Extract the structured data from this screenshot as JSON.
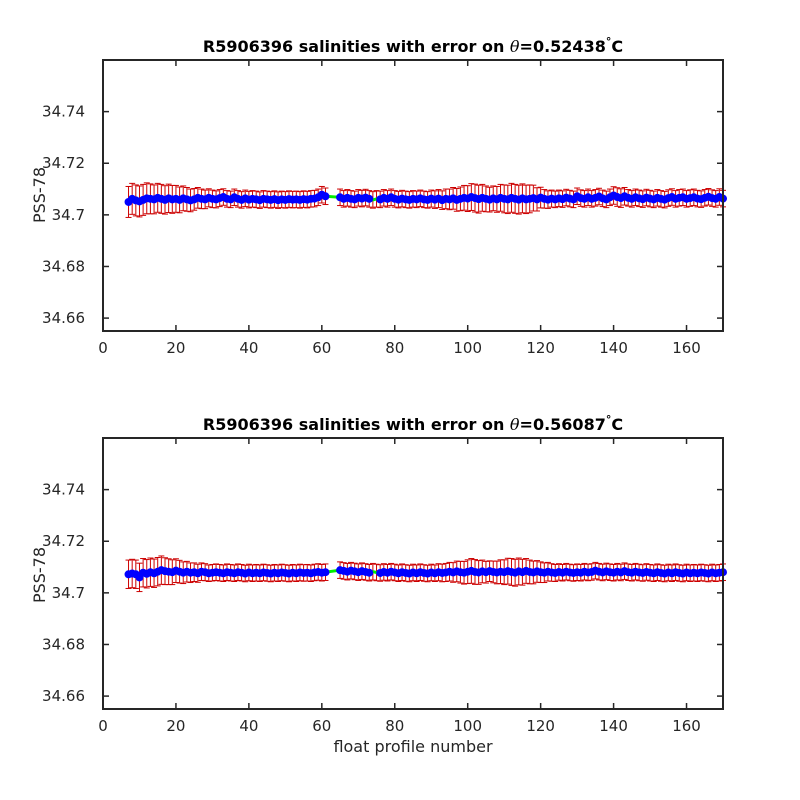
{
  "chart_data": [
    {
      "type": "scatter",
      "title_prefix": "R5906396 salinities with error on ",
      "title_theta": "θ",
      "title_value": "=0.52438",
      "title_unit": "C",
      "xlabel": "",
      "ylabel": "PSS-78",
      "xlim": [
        0,
        170
      ],
      "ylim": [
        34.655,
        34.76
      ],
      "xticks": [
        0,
        20,
        40,
        60,
        80,
        100,
        120,
        140,
        160
      ],
      "yticks": [
        34.66,
        34.68,
        34.7,
        34.72,
        34.74
      ],
      "ytick_labels": [
        "34.66",
        "34.68",
        "34.7",
        "34.72",
        "34.74"
      ],
      "grid": false,
      "series": {
        "x": [
          7,
          8,
          9,
          10,
          11,
          12,
          13,
          14,
          15,
          16,
          17,
          18,
          19,
          20,
          21,
          22,
          23,
          24,
          25,
          26,
          27,
          28,
          29,
          30,
          31,
          32,
          33,
          34,
          35,
          36,
          37,
          38,
          39,
          40,
          41,
          42,
          43,
          44,
          45,
          46,
          47,
          48,
          49,
          50,
          51,
          52,
          53,
          54,
          55,
          56,
          57,
          58,
          59,
          60,
          61,
          65,
          66,
          67,
          68,
          69,
          70,
          71,
          72,
          73,
          74,
          75,
          76,
          77,
          78,
          79,
          80,
          81,
          82,
          83,
          84,
          85,
          86,
          87,
          88,
          89,
          90,
          91,
          92,
          93,
          94,
          95,
          96,
          97,
          98,
          99,
          100,
          101,
          102,
          103,
          104,
          105,
          106,
          107,
          108,
          109,
          110,
          111,
          112,
          113,
          114,
          115,
          116,
          117,
          118,
          119,
          120,
          121,
          122,
          123,
          124,
          125,
          126,
          127,
          128,
          129,
          130,
          131,
          132,
          133,
          134,
          135,
          136,
          137,
          138,
          139,
          140,
          141,
          142,
          143,
          144,
          145,
          146,
          147,
          148,
          149,
          150,
          151,
          152,
          153,
          154,
          155,
          156,
          157,
          158,
          159,
          160,
          161,
          162,
          163,
          164,
          165,
          166,
          167,
          168,
          169,
          170
        ],
        "y": [
          34.705,
          34.7062,
          34.7056,
          34.7052,
          34.7058,
          34.7064,
          34.7062,
          34.706,
          34.7066,
          34.7062,
          34.7058,
          34.7064,
          34.706,
          34.7062,
          34.7058,
          34.7064,
          34.706,
          34.7056,
          34.706,
          34.7066,
          34.7062,
          34.706,
          34.7066,
          34.7062,
          34.706,
          34.7065,
          34.7069,
          34.7062,
          34.706,
          34.7068,
          34.7062,
          34.7058,
          34.7064,
          34.7059,
          34.7062,
          34.706,
          34.7057,
          34.7062,
          34.706,
          34.7058,
          34.7061,
          34.7057,
          34.706,
          34.7058,
          34.7061,
          34.7059,
          34.706,
          34.7058,
          34.7061,
          34.7059,
          34.7062,
          34.7063,
          34.7068,
          34.7078,
          34.7072,
          34.7068,
          34.7062,
          34.7066,
          34.7062,
          34.706,
          34.7066,
          34.7063,
          34.7067,
          34.7062,
          34.7058,
          34.7062,
          34.706,
          34.7066,
          34.7062,
          34.7068,
          34.7062,
          34.7059,
          34.7063,
          34.706,
          34.7058,
          34.7062,
          34.706,
          34.7064,
          34.706,
          34.7058,
          34.7063,
          34.7059,
          34.7063,
          34.7057,
          34.7062,
          34.706,
          34.7064,
          34.7058,
          34.7062,
          34.7066,
          34.7063,
          34.7069,
          34.7065,
          34.7061,
          34.7066,
          34.7062,
          34.7059,
          34.7064,
          34.706,
          34.7066,
          34.7062,
          34.706,
          34.7066,
          34.7062,
          34.7059,
          34.7064,
          34.706,
          34.7062,
          34.7065,
          34.706,
          34.7067,
          34.7062,
          34.7059,
          34.7063,
          34.706,
          34.7064,
          34.7061,
          34.7067,
          34.7063,
          34.706,
          34.7072,
          34.7065,
          34.7062,
          34.7068,
          34.7062,
          34.7066,
          34.7071,
          34.7064,
          34.706,
          34.7068,
          34.7075,
          34.7069,
          34.7065,
          34.7072,
          34.7066,
          34.7062,
          34.7068,
          34.7064,
          34.7061,
          34.7067,
          34.7063,
          34.706,
          34.7066,
          34.7062,
          34.7059,
          34.7065,
          34.7069,
          34.7062,
          34.7066,
          34.7068,
          34.7062,
          34.7065,
          34.7068,
          34.7063,
          34.7061,
          34.7066,
          34.707,
          34.7065,
          34.7062,
          34.7069,
          34.7063
        ],
        "err": [
          0.006,
          0.006,
          0.006,
          0.006,
          0.006,
          0.006,
          0.0058,
          0.0056,
          0.0056,
          0.0056,
          0.0055,
          0.0055,
          0.0054,
          0.0052,
          0.005,
          0.0048,
          0.0046,
          0.0044,
          0.0042,
          0.004,
          0.0038,
          0.0036,
          0.0035,
          0.0034,
          0.0033,
          0.0033,
          0.0032,
          0.0032,
          0.0032,
          0.0032,
          0.0032,
          0.0032,
          0.0032,
          0.0032,
          0.0032,
          0.0032,
          0.0032,
          0.0032,
          0.0032,
          0.0032,
          0.0032,
          0.0032,
          0.0032,
          0.0032,
          0.0032,
          0.0032,
          0.0032,
          0.0032,
          0.0032,
          0.0032,
          0.0032,
          0.0032,
          0.0032,
          0.0032,
          0.0032,
          0.0032,
          0.0032,
          0.0032,
          0.0032,
          0.0032,
          0.0032,
          0.0032,
          0.0032,
          0.0032,
          0.0032,
          0.0032,
          0.0032,
          0.0032,
          0.0032,
          0.0032,
          0.0032,
          0.0032,
          0.0032,
          0.0032,
          0.0032,
          0.0032,
          0.0032,
          0.0032,
          0.0032,
          0.0032,
          0.0033,
          0.0034,
          0.0035,
          0.0036,
          0.0038,
          0.004,
          0.0042,
          0.0044,
          0.0046,
          0.0048,
          0.005,
          0.0052,
          0.0054,
          0.0054,
          0.0052,
          0.005,
          0.0048,
          0.0048,
          0.005,
          0.0052,
          0.0054,
          0.0055,
          0.0056,
          0.0056,
          0.0056,
          0.0056,
          0.0055,
          0.0054,
          0.005,
          0.0045,
          0.004,
          0.0036,
          0.0034,
          0.0033,
          0.0032,
          0.0032,
          0.0032,
          0.0032,
          0.0032,
          0.0032,
          0.0032,
          0.0032,
          0.0032,
          0.0032,
          0.0032,
          0.0032,
          0.0032,
          0.0032,
          0.0032,
          0.0032,
          0.0034,
          0.0036,
          0.0036,
          0.0034,
          0.0032,
          0.0032,
          0.0032,
          0.0032,
          0.0032,
          0.0032,
          0.0032,
          0.0032,
          0.0032,
          0.0032,
          0.0032,
          0.0032,
          0.0032,
          0.0032,
          0.0032,
          0.0032,
          0.0032,
          0.0032,
          0.0032,
          0.0032,
          0.0032,
          0.0032,
          0.0032,
          0.0032,
          0.0032,
          0.0032,
          0.0032
        ]
      },
      "colors": {
        "line": "#00ee00",
        "marker": "#0000ff",
        "error": "#cc0000"
      }
    },
    {
      "type": "scatter",
      "title_prefix": "R5906396 salinities with error on ",
      "title_theta": "θ",
      "title_value": "=0.56087",
      "title_unit": "C",
      "xlabel": "float profile number",
      "ylabel": "PSS-78",
      "xlim": [
        0,
        170
      ],
      "ylim": [
        34.655,
        34.76
      ],
      "xticks": [
        0,
        20,
        40,
        60,
        80,
        100,
        120,
        140,
        160
      ],
      "yticks": [
        34.66,
        34.68,
        34.7,
        34.72,
        34.74
      ],
      "ytick_labels": [
        "34.66",
        "34.68",
        "34.7",
        "34.72",
        "34.74"
      ],
      "grid": false,
      "series": {
        "x": [
          7,
          8,
          9,
          10,
          11,
          12,
          13,
          14,
          15,
          16,
          17,
          18,
          19,
          20,
          21,
          22,
          23,
          24,
          25,
          26,
          27,
          28,
          29,
          30,
          31,
          32,
          33,
          34,
          35,
          36,
          37,
          38,
          39,
          40,
          41,
          42,
          43,
          44,
          45,
          46,
          47,
          48,
          49,
          50,
          51,
          52,
          53,
          54,
          55,
          56,
          57,
          58,
          59,
          60,
          61,
          65,
          66,
          67,
          68,
          69,
          70,
          71,
          72,
          73,
          74,
          75,
          76,
          77,
          78,
          79,
          80,
          81,
          82,
          83,
          84,
          85,
          86,
          87,
          88,
          89,
          90,
          91,
          92,
          93,
          94,
          95,
          96,
          97,
          98,
          99,
          100,
          101,
          102,
          103,
          104,
          105,
          106,
          107,
          108,
          109,
          110,
          111,
          112,
          113,
          114,
          115,
          116,
          117,
          118,
          119,
          120,
          121,
          122,
          123,
          124,
          125,
          126,
          127,
          128,
          129,
          130,
          131,
          132,
          133,
          134,
          135,
          136,
          137,
          138,
          139,
          140,
          141,
          142,
          143,
          144,
          145,
          146,
          147,
          148,
          149,
          150,
          151,
          152,
          153,
          154,
          155,
          156,
          157,
          158,
          159,
          160,
          161,
          162,
          163,
          164,
          165,
          166,
          167,
          168,
          169,
          170
        ],
        "y": [
          34.7072,
          34.7075,
          34.7072,
          34.706,
          34.7078,
          34.7074,
          34.708,
          34.7076,
          34.7082,
          34.7088,
          34.7084,
          34.7082,
          34.708,
          34.7086,
          34.7082,
          34.7078,
          34.7082,
          34.7078,
          34.708,
          34.7076,
          34.7082,
          34.708,
          34.7076,
          34.7078,
          34.708,
          34.7078,
          34.7076,
          34.708,
          34.7078,
          34.7076,
          34.708,
          34.7078,
          34.7075,
          34.7079,
          34.7076,
          34.7078,
          34.7076,
          34.7079,
          34.7077,
          34.7075,
          34.7078,
          34.7076,
          34.7079,
          34.7077,
          34.7075,
          34.7078,
          34.7076,
          34.7079,
          34.7077,
          34.7078,
          34.7076,
          34.7079,
          34.7081,
          34.7078,
          34.708,
          34.7088,
          34.7085,
          34.7082,
          34.7086,
          34.7083,
          34.708,
          34.7084,
          34.7081,
          34.7078,
          34.7082,
          34.7079,
          34.7077,
          34.7081,
          34.7078,
          34.7082,
          34.7079,
          34.7076,
          34.708,
          34.7077,
          34.7075,
          34.7079,
          34.7076,
          34.708,
          34.7077,
          34.7075,
          34.7079,
          34.7076,
          34.708,
          34.7077,
          34.7079,
          34.7082,
          34.7079,
          34.7083,
          34.708,
          34.7078,
          34.7082,
          34.7085,
          34.7081,
          34.7079,
          34.7083,
          34.708,
          34.7084,
          34.7081,
          34.7079,
          34.7082,
          34.708,
          34.7084,
          34.7081,
          34.7078,
          34.7083,
          34.708,
          34.7085,
          34.7081,
          34.7079,
          34.7083,
          34.708,
          34.7078,
          34.7082,
          34.7079,
          34.7077,
          34.7081,
          34.7078,
          34.7082,
          34.7079,
          34.7077,
          34.708,
          34.7078,
          34.7082,
          34.7079,
          34.7081,
          34.7086,
          34.7082,
          34.7079,
          34.7083,
          34.708,
          34.7078,
          34.7082,
          34.7079,
          34.7084,
          34.708,
          34.7078,
          34.7082,
          34.7079,
          34.7077,
          34.7081,
          34.7078,
          34.7076,
          34.708,
          34.7077,
          34.7075,
          34.7079,
          34.7076,
          34.708,
          34.7077,
          34.7075,
          34.7079,
          34.7076,
          34.7078,
          34.7076,
          34.7079,
          34.7077,
          34.7075,
          34.7079,
          34.7076,
          34.7078,
          34.708
        ],
        "err": [
          0.0055,
          0.0055,
          0.0055,
          0.0055,
          0.0055,
          0.0055,
          0.0055,
          0.0055,
          0.0055,
          0.0055,
          0.0052,
          0.005,
          0.0048,
          0.0046,
          0.0044,
          0.0042,
          0.004,
          0.0038,
          0.0036,
          0.0035,
          0.0034,
          0.0033,
          0.0032,
          0.0032,
          0.0032,
          0.0032,
          0.0032,
          0.0032,
          0.0032,
          0.0032,
          0.0032,
          0.0032,
          0.0032,
          0.0032,
          0.0032,
          0.0032,
          0.0032,
          0.0032,
          0.0032,
          0.0032,
          0.0032,
          0.0032,
          0.0032,
          0.0032,
          0.0032,
          0.0032,
          0.0032,
          0.0032,
          0.0032,
          0.0032,
          0.0032,
          0.0032,
          0.0032,
          0.0032,
          0.0032,
          0.0032,
          0.0032,
          0.0032,
          0.0032,
          0.0032,
          0.0032,
          0.0032,
          0.0032,
          0.0032,
          0.0032,
          0.0032,
          0.0032,
          0.0032,
          0.0032,
          0.0032,
          0.0032,
          0.0032,
          0.0032,
          0.0032,
          0.0032,
          0.0032,
          0.0032,
          0.0032,
          0.0032,
          0.0032,
          0.0032,
          0.0032,
          0.0033,
          0.0034,
          0.0035,
          0.0036,
          0.0038,
          0.004,
          0.0042,
          0.0044,
          0.0046,
          0.0048,
          0.0048,
          0.0046,
          0.0044,
          0.0042,
          0.004,
          0.0042,
          0.0044,
          0.0046,
          0.0048,
          0.005,
          0.0052,
          0.0052,
          0.0052,
          0.005,
          0.0048,
          0.0046,
          0.0044,
          0.0042,
          0.004,
          0.0038,
          0.0036,
          0.0034,
          0.0033,
          0.0032,
          0.0032,
          0.0032,
          0.0032,
          0.0032,
          0.0032,
          0.0032,
          0.0032,
          0.0032,
          0.0032,
          0.0032,
          0.0032,
          0.0032,
          0.0032,
          0.0032,
          0.0032,
          0.0032,
          0.0032,
          0.0032,
          0.0032,
          0.0032,
          0.0032,
          0.0032,
          0.0032,
          0.0032,
          0.0032,
          0.0032,
          0.0032,
          0.0032,
          0.0032,
          0.0032,
          0.0032,
          0.0032,
          0.0032,
          0.0032,
          0.0032,
          0.0032,
          0.0032,
          0.0032,
          0.0032,
          0.0032,
          0.0032,
          0.0032,
          0.0032,
          0.0032,
          0.0032
        ]
      },
      "colors": {
        "line": "#00ee00",
        "marker": "#0000ff",
        "error": "#cc0000"
      }
    }
  ]
}
